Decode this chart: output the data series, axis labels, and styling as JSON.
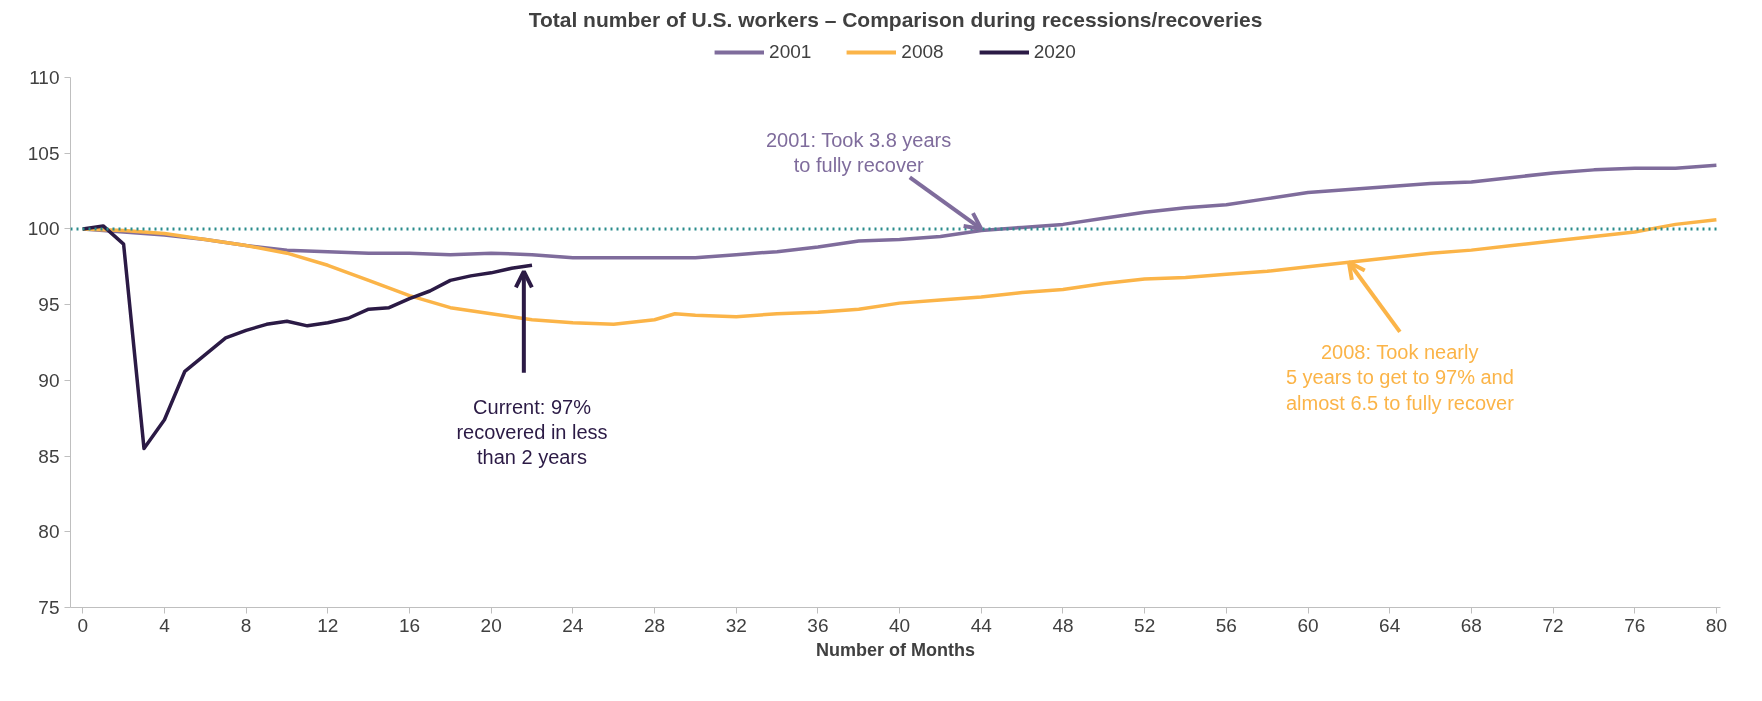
{
  "chart_data": {
    "type": "line",
    "title": "Total number of U.S. workers – Comparison during recessions/recoveries",
    "xlabel": "Number of Months",
    "xlim": [
      -0.6,
      80.2
    ],
    "xticks": [
      0,
      4,
      8,
      12,
      16,
      20,
      24,
      28,
      32,
      36,
      40,
      44,
      48,
      52,
      56,
      60,
      64,
      68,
      72,
      76,
      80
    ],
    "ylim": [
      75,
      110
    ],
    "yticks": [
      75,
      80,
      85,
      90,
      95,
      100,
      105,
      110
    ],
    "grid": false,
    "legend": "top",
    "marker": "none",
    "line_style": "solid",
    "series": [
      {
        "name": "2001",
        "color": "#7f6c9c",
        "x": [
          0,
          2,
          4,
          6,
          8,
          10,
          12,
          14,
          16,
          18,
          20,
          22,
          24,
          26,
          28,
          30,
          32,
          34,
          36,
          38,
          40,
          42,
          44,
          46,
          48,
          50,
          52,
          54,
          56,
          58,
          60,
          62,
          64,
          66,
          68,
          70,
          72,
          74,
          76,
          78,
          80
        ],
        "values": [
          100,
          99.8,
          99.6,
          99.3,
          98.9,
          98.6,
          98.5,
          98.4,
          98.4,
          98.3,
          98.4,
          98.3,
          98.1,
          98.1,
          98.1,
          98.1,
          98.3,
          98.5,
          98.8,
          99.2,
          99.3,
          99.5,
          99.9,
          100.1,
          100.3,
          100.7,
          101.1,
          101.4,
          101.6,
          102.0,
          102.4,
          102.6,
          102.8,
          103.0,
          103.1,
          103.4,
          103.7,
          103.9,
          104.0,
          104.0,
          104.2
        ]
      },
      {
        "name": "2008",
        "color": "#fbb448",
        "x": [
          0,
          2,
          4,
          6,
          8,
          10,
          12,
          14,
          16,
          18,
          20,
          22,
          24,
          26,
          28,
          29,
          30,
          32,
          34,
          36,
          38,
          40,
          42,
          44,
          46,
          48,
          50,
          52,
          54,
          56,
          58,
          60,
          62,
          64,
          66,
          68,
          70,
          72,
          74,
          76,
          78,
          80
        ],
        "values": [
          100,
          99.9,
          99.7,
          99.3,
          98.9,
          98.4,
          97.6,
          96.6,
          95.6,
          94.8,
          94.4,
          94.0,
          93.8,
          93.7,
          94.0,
          94.4,
          94.3,
          94.2,
          94.4,
          94.5,
          94.7,
          95.1,
          95.3,
          95.5,
          95.8,
          96.0,
          96.4,
          96.7,
          96.8,
          97.0,
          97.2,
          97.5,
          97.8,
          98.1,
          98.4,
          98.6,
          98.9,
          99.2,
          99.5,
          99.8,
          100.3,
          100.6
        ]
      },
      {
        "name": "2020",
        "color": "#2b1a45",
        "x": [
          0,
          1,
          2,
          3,
          4,
          5,
          6,
          7,
          8,
          9,
          10,
          11,
          12,
          13,
          14,
          15,
          16,
          17,
          18,
          19,
          20,
          21,
          22
        ],
        "values": [
          100,
          100.2,
          99.0,
          85.5,
          87.4,
          90.6,
          91.7,
          92.8,
          93.3,
          93.7,
          93.9,
          93.6,
          93.8,
          94.1,
          94.7,
          94.8,
          95.4,
          95.9,
          96.6,
          96.9,
          97.1,
          97.4,
          97.6
        ]
      }
    ],
    "ref_lines": [
      {
        "axis": "y",
        "value": 100,
        "label": null,
        "color": "#2a8c8c",
        "line_style": "dotted"
      }
    ],
    "annotations": [
      {
        "text": "2001: Took 3.8 years\nto fully recover",
        "x": 44,
        "y": 100
      },
      {
        "text": "2008: Took nearly\n5 years to get to 97% and\nalmost 6.5 to fully recover",
        "x": 62,
        "y": 97.8
      },
      {
        "text": "Current: 97%\nrecovered in less\nthan 2 years",
        "x": 21.6,
        "y": 97.2
      }
    ]
  }
}
